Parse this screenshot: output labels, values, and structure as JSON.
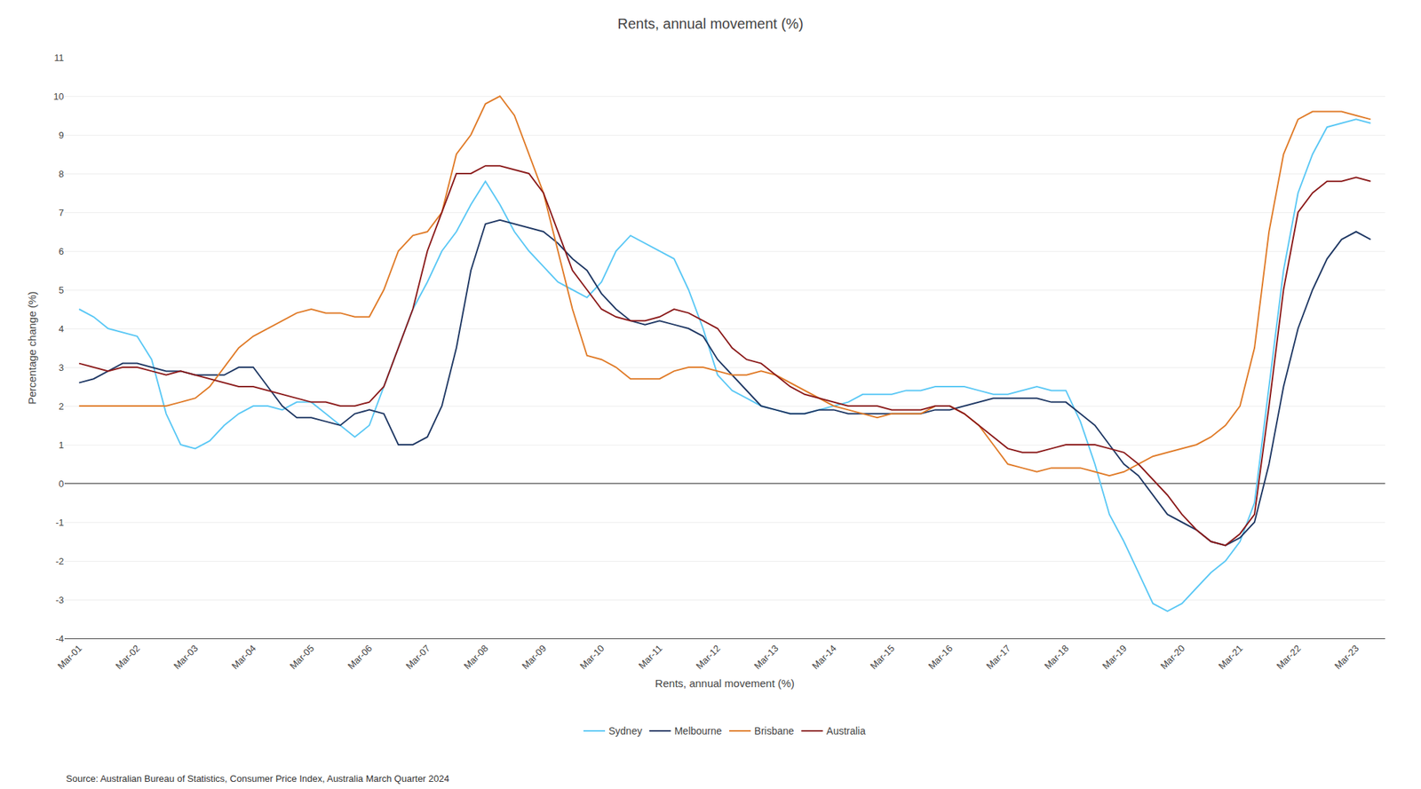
{
  "chart_data": {
    "type": "line",
    "title": "Rents, annual movement (%)",
    "xlabel": "Rents, annual movement (%)",
    "ylabel": "Percentage change (%)",
    "source": "Source: Australian Bureau of Statistics, Consumer Price Index, Australia March Quarter 2024",
    "categories": [
      "Mar-01",
      null,
      null,
      null,
      "Mar-02",
      null,
      null,
      null,
      "Mar-03",
      null,
      null,
      null,
      "Mar-04",
      null,
      null,
      null,
      "Mar-05",
      null,
      null,
      null,
      "Mar-06",
      null,
      null,
      null,
      "Mar-07",
      null,
      null,
      null,
      "Mar-08",
      null,
      null,
      null,
      "Mar-09",
      null,
      null,
      null,
      "Mar-10",
      null,
      null,
      null,
      "Mar-11",
      null,
      null,
      null,
      "Mar-12",
      null,
      null,
      null,
      "Mar-13",
      null,
      null,
      null,
      "Mar-14",
      null,
      null,
      null,
      "Mar-15",
      null,
      null,
      null,
      "Mar-16",
      null,
      null,
      null,
      "Mar-17",
      null,
      null,
      null,
      "Mar-18",
      null,
      null,
      null,
      "Mar-19",
      null,
      null,
      null,
      "Mar-20",
      null,
      null,
      null,
      "Mar-21",
      null,
      null,
      null,
      "Mar-22",
      null,
      null,
      null,
      "Mar-23",
      null
    ],
    "series": [
      {
        "name": "Sydney",
        "color": "#5BC8F5",
        "values": [
          4.5,
          4.3,
          4.0,
          3.9,
          3.8,
          3.2,
          1.8,
          1.0,
          0.9,
          1.1,
          1.5,
          1.8,
          2.0,
          2.0,
          1.9,
          2.1,
          2.1,
          1.8,
          1.5,
          1.2,
          1.5,
          2.5,
          3.5,
          4.5,
          5.2,
          6.0,
          6.5,
          7.2,
          7.8,
          7.2,
          6.5,
          6.0,
          5.6,
          5.2,
          5.0,
          4.8,
          5.2,
          6.0,
          6.4,
          6.2,
          6.0,
          5.8,
          5.0,
          4.0,
          2.8,
          2.4,
          2.2,
          2.0,
          1.9,
          1.8,
          1.8,
          1.9,
          2.0,
          2.1,
          2.3,
          2.3,
          2.3,
          2.4,
          2.4,
          2.5,
          2.5,
          2.5,
          2.4,
          2.3,
          2.3,
          2.4,
          2.5,
          2.4,
          2.4,
          1.6,
          0.5,
          -0.8,
          -1.5,
          -2.3,
          -3.1,
          -3.3,
          -3.1,
          -2.7,
          -2.3,
          -2.0,
          -1.5,
          -0.5,
          2.5,
          5.5,
          7.5,
          8.5,
          9.2,
          9.3,
          9.4,
          9.3
        ]
      },
      {
        "name": "Melbourne",
        "color": "#1F3864",
        "values": [
          2.6,
          2.7,
          2.9,
          3.1,
          3.1,
          3.0,
          2.9,
          2.9,
          2.8,
          2.8,
          2.8,
          3.0,
          3.0,
          2.5,
          2.0,
          1.7,
          1.7,
          1.6,
          1.5,
          1.8,
          1.9,
          1.8,
          1.0,
          1.0,
          1.2,
          2.0,
          3.5,
          5.5,
          6.7,
          6.8,
          6.7,
          6.6,
          6.5,
          6.2,
          5.8,
          5.5,
          4.9,
          4.5,
          4.2,
          4.1,
          4.2,
          4.1,
          4.0,
          3.8,
          3.2,
          2.8,
          2.4,
          2.0,
          1.9,
          1.8,
          1.8,
          1.9,
          1.9,
          1.8,
          1.8,
          1.8,
          1.8,
          1.8,
          1.8,
          1.9,
          1.9,
          2.0,
          2.1,
          2.2,
          2.2,
          2.2,
          2.2,
          2.1,
          2.1,
          1.8,
          1.5,
          1.0,
          0.5,
          0.2,
          -0.3,
          -0.8,
          -1.0,
          -1.2,
          -1.5,
          -1.6,
          -1.4,
          -1.0,
          0.5,
          2.5,
          4.0,
          5.0,
          5.8,
          6.3,
          6.5,
          6.3
        ]
      },
      {
        "name": "Brisbane",
        "color": "#E07B28",
        "values": [
          2.0,
          2.0,
          2.0,
          2.0,
          2.0,
          2.0,
          2.0,
          2.1,
          2.2,
          2.5,
          3.0,
          3.5,
          3.8,
          4.0,
          4.2,
          4.4,
          4.5,
          4.4,
          4.4,
          4.3,
          4.3,
          5.0,
          6.0,
          6.4,
          6.5,
          7.0,
          8.5,
          9.0,
          9.8,
          10.0,
          9.5,
          8.5,
          7.5,
          6.0,
          4.5,
          3.3,
          3.2,
          3.0,
          2.7,
          2.7,
          2.7,
          2.9,
          3.0,
          3.0,
          2.9,
          2.8,
          2.8,
          2.9,
          2.8,
          2.6,
          2.4,
          2.2,
          2.0,
          1.9,
          1.8,
          1.7,
          1.8,
          1.8,
          1.8,
          2.0,
          2.0,
          1.8,
          1.5,
          1.0,
          0.5,
          0.4,
          0.3,
          0.4,
          0.4,
          0.4,
          0.3,
          0.2,
          0.3,
          0.5,
          0.7,
          0.8,
          0.9,
          1.0,
          1.2,
          1.5,
          2.0,
          3.5,
          6.5,
          8.5,
          9.4,
          9.6,
          9.6,
          9.6,
          9.5,
          9.4
        ]
      },
      {
        "name": "Australia",
        "color": "#8B1A1A",
        "values": [
          3.1,
          3.0,
          2.9,
          3.0,
          3.0,
          2.9,
          2.8,
          2.9,
          2.8,
          2.7,
          2.6,
          2.5,
          2.5,
          2.4,
          2.3,
          2.2,
          2.1,
          2.1,
          2.0,
          2.0,
          2.1,
          2.5,
          3.5,
          4.5,
          6.0,
          7.0,
          8.0,
          8.0,
          8.2,
          8.2,
          8.1,
          8.0,
          7.5,
          6.5,
          5.5,
          5.0,
          4.5,
          4.3,
          4.2,
          4.2,
          4.3,
          4.5,
          4.4,
          4.2,
          4.0,
          3.5,
          3.2,
          3.1,
          2.8,
          2.5,
          2.3,
          2.2,
          2.1,
          2.0,
          2.0,
          2.0,
          1.9,
          1.9,
          1.9,
          2.0,
          2.0,
          1.8,
          1.5,
          1.2,
          0.9,
          0.8,
          0.8,
          0.9,
          1.0,
          1.0,
          1.0,
          0.9,
          0.8,
          0.5,
          0.1,
          -0.3,
          -0.8,
          -1.2,
          -1.5,
          -1.6,
          -1.3,
          -0.8,
          2.0,
          5.0,
          7.0,
          7.5,
          7.8,
          7.8,
          7.9,
          7.8
        ]
      }
    ],
    "ylim": [
      -4,
      11
    ],
    "yticks": [
      -4,
      -3,
      -2,
      -1,
      0,
      1,
      2,
      3,
      4,
      5,
      6,
      7,
      8,
      9,
      10,
      11
    ],
    "grid": "y",
    "legend": "bottom"
  }
}
